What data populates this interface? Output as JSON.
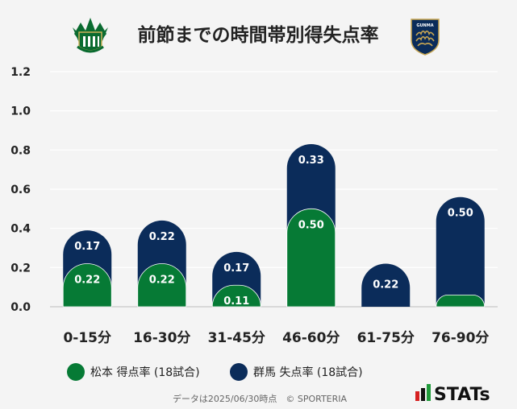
{
  "chart_data": {
    "type": "bar",
    "title": "前節までの時間帯別得失点率",
    "categories": [
      "0-15分",
      "16-30分",
      "31-45分",
      "46-60分",
      "61-75分",
      "76-90分"
    ],
    "series": [
      {
        "name": "松本 得点率 (18試合)",
        "color": "#067a35",
        "values": [
          0.22,
          0.22,
          0.11,
          0.5,
          0.0,
          0.06
        ],
        "labels": [
          "0.22",
          "0.22",
          "0.11",
          "0.50",
          "",
          ""
        ]
      },
      {
        "name": "群馬 失点率 (18試合)",
        "color": "#0b2c5a",
        "values": [
          0.17,
          0.22,
          0.17,
          0.33,
          0.22,
          0.5
        ],
        "labels": [
          "0.17",
          "0.22",
          "0.17",
          "0.33",
          "0.22",
          "0.50"
        ]
      }
    ],
    "yticks": [
      "0.0",
      "0.2",
      "0.4",
      "0.6",
      "0.8",
      "1.0",
      "1.2"
    ],
    "ylim": [
      0,
      1.2
    ],
    "grid": true,
    "legend": "bottom-left"
  },
  "footer": {
    "note": "データは2025/06/30時点　© SPORTERIA",
    "brand": "STATs"
  },
  "logos": {
    "left": "matsumoto-crest-icon",
    "right": "gunma-crest-icon",
    "right_text": "GUNMA"
  },
  "colors": {
    "background": "#f4f4f4",
    "green": "#067a35",
    "navy": "#0b2c5a",
    "grid": "#ffffff"
  }
}
